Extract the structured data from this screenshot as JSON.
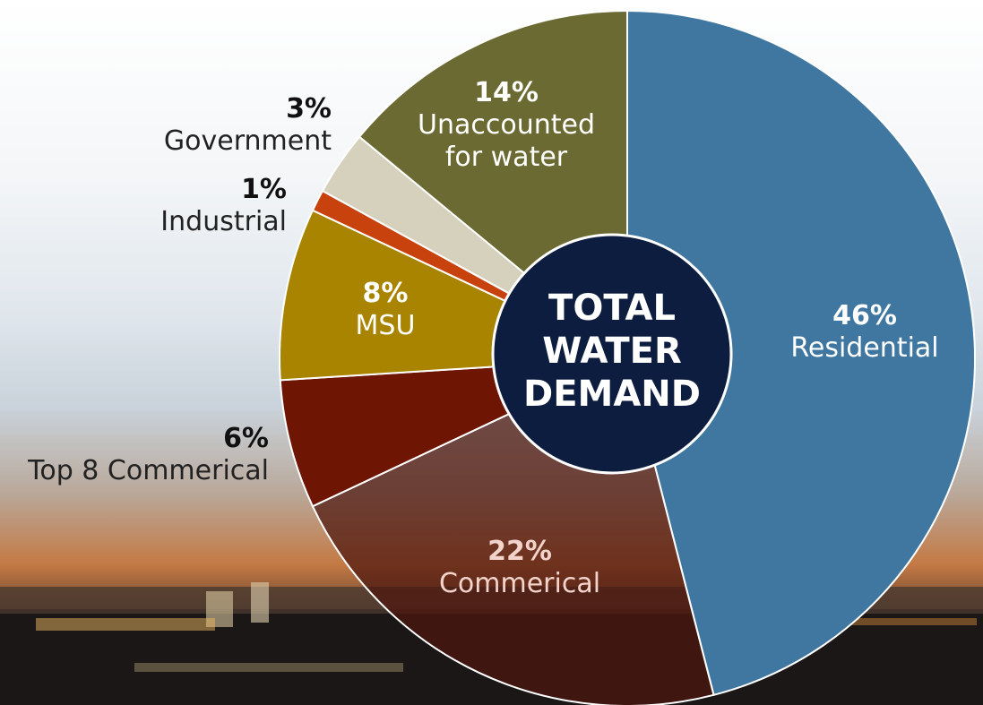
{
  "chart_data": {
    "type": "pie",
    "center_label": "TOTAL WATER DEMAND",
    "categories": [
      "Residential",
      "Commerical",
      "Top 8 Commerical",
      "MSU",
      "Industrial",
      "Government",
      "Unaccounted for water"
    ],
    "values": [
      46,
      22,
      6,
      8,
      1,
      3,
      14
    ],
    "value_labels": [
      "46%",
      "22%",
      "6%",
      "8%",
      "1%",
      "3%",
      "14%"
    ],
    "colors": [
      "#3f77a0",
      "rgba(78,22,14,0.72)",
      "#6e1503",
      "#a88400",
      "#c8420e",
      "#d6d1bd",
      "#6b6a32"
    ]
  }
}
